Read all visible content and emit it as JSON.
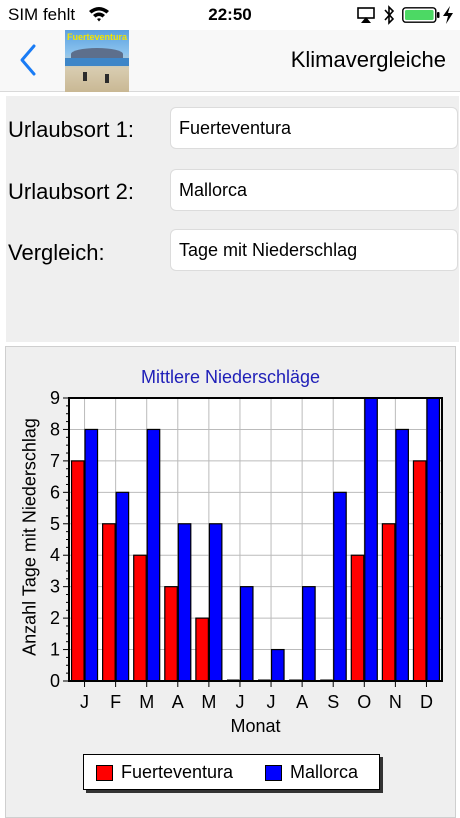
{
  "status_bar": {
    "carrier": "SIM fehlt",
    "time": "22:50",
    "icons": [
      "wifi-icon",
      "airplay-icon",
      "bluetooth-icon",
      "battery-icon",
      "charging-icon"
    ]
  },
  "nav": {
    "title": "Klimavergleiche",
    "thumbnail_label": "Fuerteventura",
    "back_icon": "chevron-left-icon"
  },
  "form": {
    "rows": [
      {
        "label": "Urlaubsort 1:",
        "value": "Fuerteventura"
      },
      {
        "label": "Urlaubsort 2:",
        "value": "Mallorca"
      },
      {
        "label": "Vergleich:",
        "value": "Tage mit Niederschlag"
      }
    ]
  },
  "chart_data": {
    "type": "bar",
    "title": "Mittlere Niederschläge",
    "xlabel": "Monat",
    "ylabel": "Anzahl Tage mit Niederschlag",
    "categories": [
      "J",
      "F",
      "M",
      "A",
      "M",
      "J",
      "J",
      "A",
      "S",
      "O",
      "N",
      "D"
    ],
    "ylim": [
      0,
      9
    ],
    "yticks": [
      0,
      1,
      2,
      3,
      4,
      5,
      6,
      7,
      8,
      9
    ],
    "grid": true,
    "legend_position": "bottom",
    "series": [
      {
        "name": "Fuerteventura",
        "color": "#ff0000",
        "values": [
          7,
          5,
          4,
          3,
          2,
          0,
          0,
          0,
          0,
          4,
          5,
          7
        ]
      },
      {
        "name": "Mallorca",
        "color": "#0000ff",
        "values": [
          8,
          6,
          8,
          5,
          5,
          3,
          1,
          3,
          6,
          9,
          8,
          9
        ]
      }
    ]
  }
}
